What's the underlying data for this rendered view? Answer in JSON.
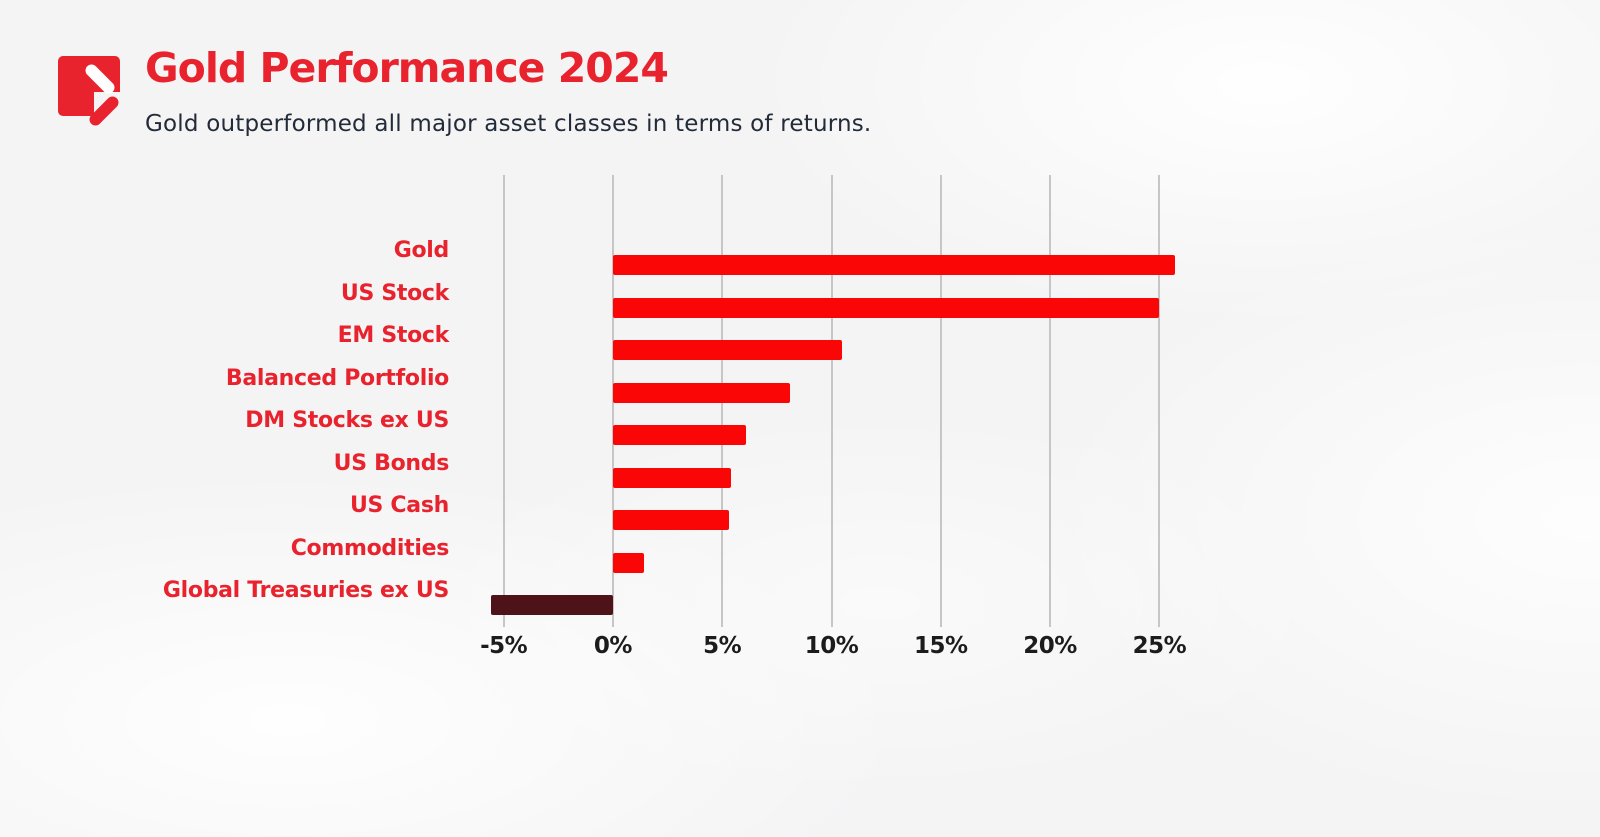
{
  "page": {
    "background": "#f4f4f5"
  },
  "header": {
    "title": "Gold Performance 2024",
    "subtitle": "Gold outperformed all major asset classes in terms of returns.",
    "logo_icon": "pen-slash-logo"
  },
  "colors": {
    "background": "#f4f4f5",
    "accent_red": "#e8232e",
    "bar_red": "#fb0606",
    "bar_negative": "#4d1318",
    "subtitle_text": "#232b39",
    "axis_text": "#1c1c1c",
    "gridline": "#c6c6c6"
  },
  "chart_data": {
    "type": "bar",
    "orientation": "horizontal",
    "title": "Gold Performance 2024",
    "subtitle": "Gold outperformed all major asset classes in terms of returns.",
    "categories": [
      "Gold",
      "US Stock",
      "EM Stock",
      "Balanced Portfolio",
      "DM Stocks ex US",
      "US Bonds",
      "US Cash",
      "Commodities",
      "Global Treasuries ex US"
    ],
    "values": [
      25.7,
      25.0,
      10.5,
      8.1,
      6.1,
      5.4,
      5.3,
      1.4,
      -5.6
    ],
    "unit": "%",
    "xlabel": "",
    "ylabel": "",
    "axis": {
      "min": -7.5,
      "max": 27.5
    },
    "ticks": [
      {
        "value": -5,
        "label": "-5%"
      },
      {
        "value": 0,
        "label": "0%"
      },
      {
        "value": 5,
        "label": "5%"
      },
      {
        "value": 10,
        "label": "10%"
      },
      {
        "value": 15,
        "label": "15%"
      },
      {
        "value": 20,
        "label": "20%"
      },
      {
        "value": 25,
        "label": "25%"
      }
    ],
    "grid": true,
    "legend": false,
    "bar_color": "#fb0606",
    "negative_bar_color": "#4d1318",
    "category_label_color": "#e8232e",
    "tick_label_color": "#1c1c1c",
    "gridline_color": "#c6c6c6"
  }
}
